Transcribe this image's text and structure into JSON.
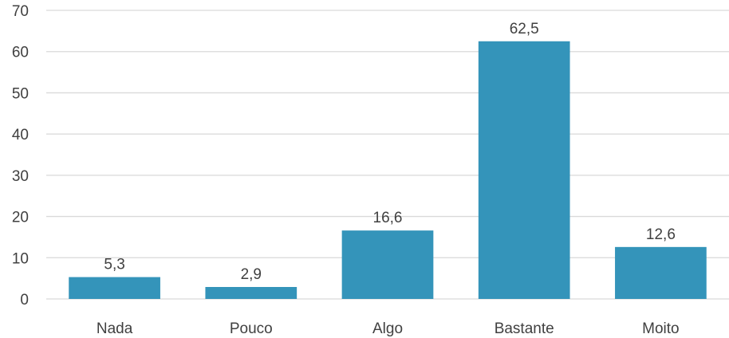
{
  "chart_data": {
    "type": "bar",
    "title": "",
    "xlabel": "",
    "ylabel": "",
    "categories": [
      "Nada",
      "Pouco",
      "Algo",
      "Bastante",
      "Moito"
    ],
    "values": [
      5.3,
      2.9,
      16.6,
      62.5,
      12.6
    ],
    "value_labels": [
      "5,3",
      "2,9",
      "16,6",
      "62,5",
      "12,6"
    ],
    "ylim": [
      0,
      70
    ],
    "yticks": [
      0,
      10,
      20,
      30,
      40,
      50,
      60,
      70
    ],
    "grid": true,
    "legend": "none",
    "bar_color": "#3494ba",
    "grid_color": "#d9d9d9",
    "text_color": "#404040"
  }
}
